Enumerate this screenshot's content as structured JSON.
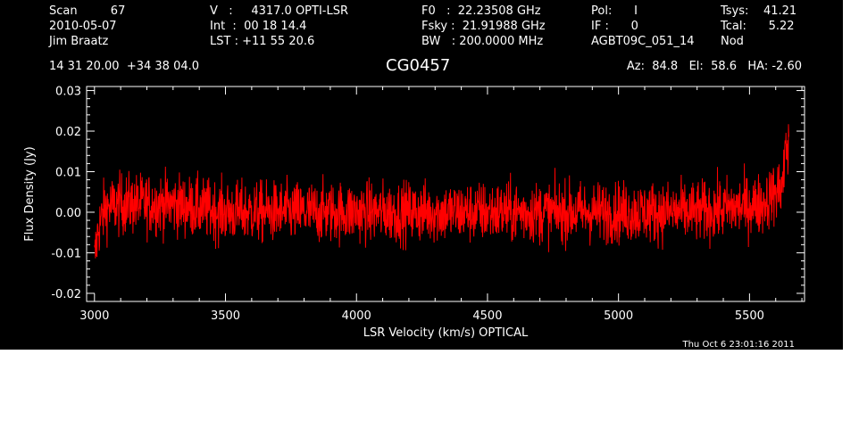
{
  "header": {
    "col1": [
      "Scan         67",
      "2010-05-07",
      "Jim Braatz"
    ],
    "col2": [
      "V   :     4317.0 OPTI-LSR",
      "Int  :  00 18 14.4",
      "LST : +11 55 20.6"
    ],
    "col3": [
      "F0   :  22.23508 GHz",
      "Fsky :  21.91988 GHz",
      "BW   : 200.0000 MHz"
    ],
    "col4": [
      "Pol:      I",
      "IF :      0",
      "AGBT09C_051_14"
    ],
    "col5": [
      "Tsys:    41.21",
      "Tcal:      5.22",
      "Nod"
    ],
    "coords": "14 31 20.00  +34 38 04.0",
    "object": "CG0457",
    "azel": "Az:  84.8   El:  58.6   HA: -2.60",
    "timestamp": "Thu Oct  6 23:01:16 2011"
  },
  "colors": {
    "background": "#000000",
    "axes": "#ffffff",
    "series": "#ff0000"
  },
  "chart_data": {
    "type": "line",
    "xlabel": "LSR Velocity (km/s) OPTICAL",
    "ylabel": "Flux Density (Jy)",
    "xlim": [
      2970,
      5710
    ],
    "ylim": [
      -0.022,
      0.031
    ],
    "x_ticks": [
      3000,
      3500,
      4000,
      4500,
      5000,
      5500
    ],
    "x_tick_labels": [
      "3000",
      "3500",
      "4000",
      "4500",
      "5000",
      "5500"
    ],
    "y_ticks": [
      -0.02,
      -0.01,
      0.0,
      0.01,
      0.02,
      0.03
    ],
    "y_tick_labels": [
      "-0.02",
      "-0.01",
      "0.00",
      "0.01",
      "0.02",
      "0.03"
    ],
    "series": [
      {
        "x_range": [
          3000,
          5650
        ],
        "baseline": [
          [
            3000,
            -0.012
          ],
          [
            3015,
            -0.004
          ],
          [
            3040,
            0.001
          ],
          [
            3100,
            0.002
          ],
          [
            3300,
            0.002
          ],
          [
            3500,
            0.0
          ],
          [
            3700,
            0.0
          ],
          [
            4000,
            0.0
          ],
          [
            4500,
            0.0
          ],
          [
            5000,
            0.0
          ],
          [
            5300,
            0.0
          ],
          [
            5550,
            0.002
          ],
          [
            5620,
            0.006
          ],
          [
            5650,
            0.012
          ]
        ],
        "noise_rms": 0.0038
      }
    ]
  }
}
